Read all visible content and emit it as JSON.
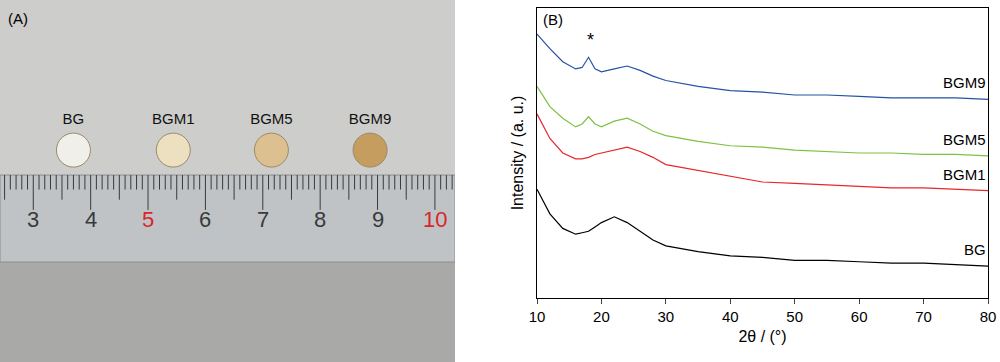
{
  "chart_data": [
    {
      "type": "scatter",
      "title": "(A)",
      "marker": "circle",
      "labels": [
        "BG",
        "BGM1",
        "BGM5",
        "BGM9"
      ],
      "x": [
        3.7,
        5.44,
        7.15,
        8.87
      ],
      "y": [
        0.51,
        0.51,
        0.51,
        0.51
      ],
      "colors": [
        "#f1efe9",
        "#ece0c0",
        "#dcc08f",
        "#c59d5e"
      ],
      "xlim": [
        2.42,
        10.35
      ],
      "xticks": [
        3,
        4,
        5,
        6,
        7,
        8,
        9,
        10
      ],
      "ylim": [
        0,
        1
      ]
    },
    {
      "type": "line",
      "title": "(B)",
      "x_label": "2θ / (°)",
      "y_label": "Intensity / (a. u.)",
      "x": [
        10,
        12,
        14,
        16,
        17,
        18,
        19,
        20,
        22,
        24,
        26,
        28,
        30,
        35,
        40,
        45,
        50,
        55,
        60,
        65,
        70,
        75,
        80
      ],
      "series": [
        {
          "name": "BG",
          "color": "#000000",
          "values": [
            37.5,
            29,
            24,
            22,
            22.5,
            23,
            24.5,
            26,
            28,
            26,
            23,
            20,
            18,
            16,
            14.5,
            14,
            13,
            13,
            12.5,
            12,
            12,
            11.5,
            11
          ]
        },
        {
          "name": "BGM1",
          "color": "#e8262a",
          "values": [
            63.5,
            55,
            50,
            48,
            48,
            48.5,
            49.5,
            50,
            51,
            52,
            50.5,
            48.5,
            46,
            44,
            42,
            40,
            39.5,
            39,
            38.5,
            38,
            38,
            37.5,
            37
          ]
        },
        {
          "name": "BGM5",
          "color": "#7cc242",
          "values": [
            73,
            66,
            62,
            59,
            60,
            62.5,
            60,
            59,
            61,
            62,
            60,
            57.5,
            56,
            54,
            52.5,
            52,
            51,
            50.5,
            50,
            50,
            49.5,
            49.5,
            49
          ]
        },
        {
          "name": "BGM9",
          "color": "#2453a4",
          "values": [
            91,
            86,
            81.5,
            79,
            79.5,
            83,
            79,
            78,
            79,
            80,
            78.5,
            76.5,
            75,
            73,
            71.5,
            71,
            70,
            70,
            69.5,
            69,
            69,
            69,
            68.5
          ]
        }
      ],
      "annotations": [
        {
          "text": "*",
          "x": 18.3,
          "y": 85
        }
      ],
      "xlim": [
        10,
        80
      ],
      "xticks": [
        10,
        20,
        30,
        40,
        50,
        60,
        70,
        80
      ],
      "ylim": [
        0,
        100
      ],
      "yticks": [],
      "tick_labels": "x"
    }
  ]
}
